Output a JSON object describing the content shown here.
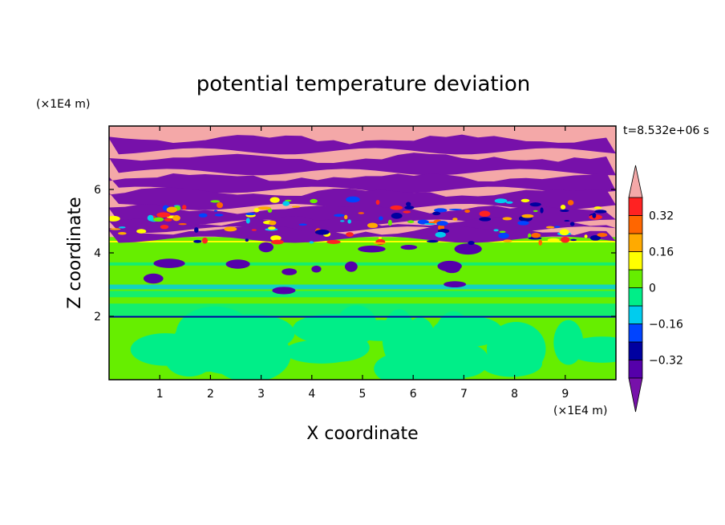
{
  "chart_data": {
    "type": "heatmap",
    "title": "potential temperature deviation",
    "xlabel": "X coordinate",
    "ylabel": "Z coordinate",
    "x_unit": "(×1E4 m)",
    "y_unit": "(×1E4 m)",
    "time_label": "t=8.532e+06 s",
    "xlim": [
      0,
      10
    ],
    "ylim": [
      0,
      8
    ],
    "x_ticks": [
      1,
      2,
      3,
      4,
      5,
      6,
      7,
      8,
      9
    ],
    "y_ticks": [
      2,
      4,
      6
    ],
    "colorbar": {
      "levels": [
        -0.48,
        -0.4,
        -0.32,
        -0.24,
        -0.16,
        -0.08,
        0,
        0.08,
        0.16,
        0.24,
        0.32,
        0.4,
        0.48
      ],
      "labeled_levels": [
        0.32,
        0.16,
        0,
        -0.16,
        -0.32
      ],
      "tick_labels": [
        "0.32",
        "0.16",
        "0",
        "−0.16",
        "−0.32"
      ],
      "colors": [
        "#7711aa",
        "#5500aa",
        "#0000a0",
        "#0044ff",
        "#00ccee",
        "#00ee88",
        "#66ee00",
        "#ffff00",
        "#ffaa00",
        "#ff6600",
        "#ff2222",
        "#f4a8a8"
      ],
      "extend": "both"
    }
  },
  "colors": {
    "over": "#f4a8a8",
    "under": "#7711aa",
    "upper_neutral": "#f4a8a8",
    "lower_light": "#66ee00",
    "lower_dark": "#00ee88"
  }
}
